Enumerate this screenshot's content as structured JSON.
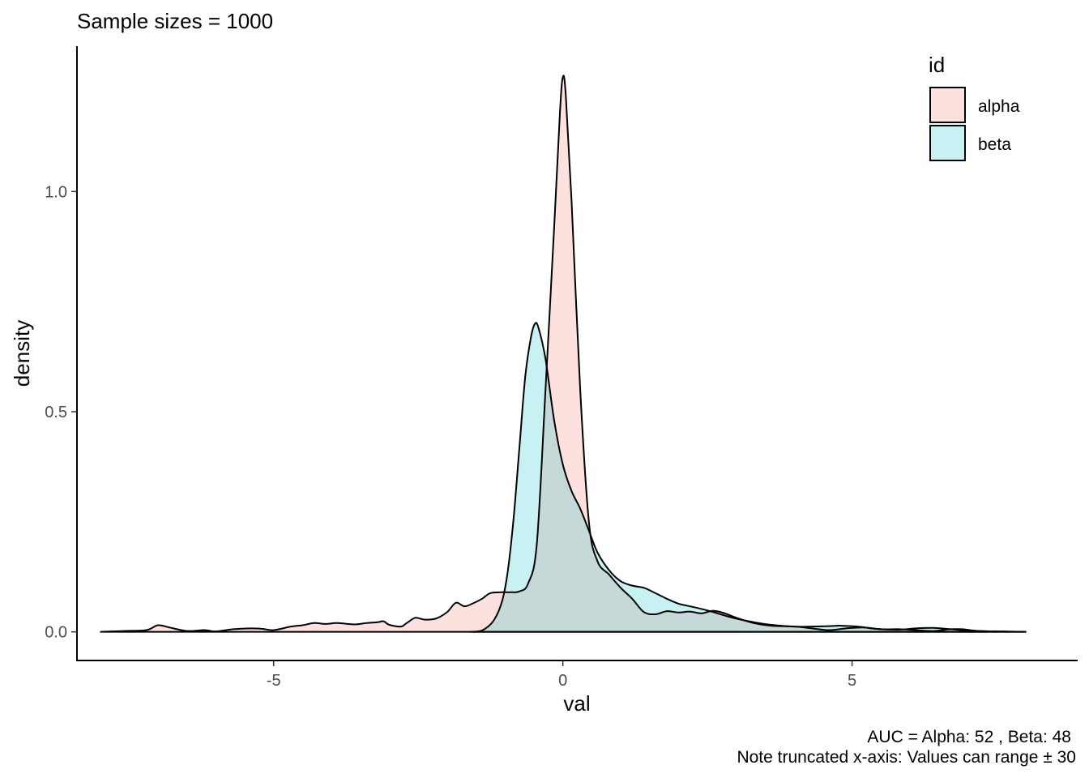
{
  "chart_data": {
    "type": "area",
    "title": "Sample sizes =  1000",
    "xlabel": "val",
    "ylabel": "density",
    "xlim": [
      -8.4,
      8.9
    ],
    "ylim": [
      -0.065,
      1.33
    ],
    "x_ticks": [
      -5,
      0,
      5
    ],
    "x_tick_labels": [
      "-5",
      "0",
      "5"
    ],
    "y_ticks": [
      0,
      0.5,
      1
    ],
    "y_tick_labels": [
      "0.0",
      "0.5",
      "1.0"
    ],
    "grid": false,
    "legend": {
      "title": "id",
      "position": "top-right",
      "entries": [
        {
          "label": "alpha",
          "color": "#f8766d"
        },
        {
          "label": "beta",
          "color": "#00bfc4"
        }
      ]
    },
    "caption_lines": [
      "AUC = Alpha: 52 , Beta: 48",
      "Note truncated x-axis: Values can range ± 30"
    ],
    "fill_opacity": 0.22,
    "series": [
      {
        "name": "alpha",
        "color": "#f8766d",
        "points": [
          [
            -8.0,
            0.0
          ],
          [
            -7.6,
            0.002
          ],
          [
            -7.2,
            0.004
          ],
          [
            -7.0,
            0.015
          ],
          [
            -6.8,
            0.01
          ],
          [
            -6.5,
            0.002
          ],
          [
            -6.2,
            0.004
          ],
          [
            -6.0,
            0.001
          ],
          [
            -5.7,
            0.006
          ],
          [
            -5.4,
            0.008
          ],
          [
            -5.2,
            0.007
          ],
          [
            -5.0,
            0.004
          ],
          [
            -4.7,
            0.012
          ],
          [
            -4.5,
            0.015
          ],
          [
            -4.3,
            0.02
          ],
          [
            -4.1,
            0.018
          ],
          [
            -3.9,
            0.02
          ],
          [
            -3.6,
            0.017
          ],
          [
            -3.4,
            0.02
          ],
          [
            -3.2,
            0.022
          ],
          [
            -3.1,
            0.024
          ],
          [
            -3.0,
            0.016
          ],
          [
            -2.8,
            0.012
          ],
          [
            -2.7,
            0.02
          ],
          [
            -2.55,
            0.032
          ],
          [
            -2.4,
            0.028
          ],
          [
            -2.2,
            0.03
          ],
          [
            -2.0,
            0.045
          ],
          [
            -1.85,
            0.066
          ],
          [
            -1.7,
            0.058
          ],
          [
            -1.55,
            0.065
          ],
          [
            -1.4,
            0.075
          ],
          [
            -1.25,
            0.088
          ],
          [
            -1.05,
            0.09
          ],
          [
            -0.9,
            0.09
          ],
          [
            -0.75,
            0.092
          ],
          [
            -0.6,
            0.11
          ],
          [
            -0.45,
            0.2
          ],
          [
            -0.3,
            0.55
          ],
          [
            -0.15,
            0.92
          ],
          [
            -0.05,
            1.18
          ],
          [
            0.0,
            1.26
          ],
          [
            0.05,
            1.22
          ],
          [
            0.15,
            0.98
          ],
          [
            0.3,
            0.55
          ],
          [
            0.45,
            0.25
          ],
          [
            0.6,
            0.16
          ],
          [
            0.8,
            0.13
          ],
          [
            1.0,
            0.1
          ],
          [
            1.2,
            0.075
          ],
          [
            1.4,
            0.045
          ],
          [
            1.6,
            0.04
          ],
          [
            1.8,
            0.047
          ],
          [
            2.0,
            0.044
          ],
          [
            2.2,
            0.046
          ],
          [
            2.4,
            0.042
          ],
          [
            2.6,
            0.048
          ],
          [
            2.8,
            0.042
          ],
          [
            3.0,
            0.032
          ],
          [
            3.3,
            0.02
          ],
          [
            3.6,
            0.014
          ],
          [
            4.0,
            0.012
          ],
          [
            4.3,
            0.008
          ],
          [
            4.6,
            0.004
          ],
          [
            4.9,
            0.008
          ],
          [
            5.2,
            0.01
          ],
          [
            5.5,
            0.006
          ],
          [
            5.8,
            0.006
          ],
          [
            6.1,
            0.004
          ],
          [
            6.4,
            0.002
          ],
          [
            6.7,
            0.006
          ],
          [
            6.9,
            0.006
          ],
          [
            7.2,
            0.002
          ],
          [
            7.6,
            0.001
          ],
          [
            8.0,
            0.0
          ]
        ]
      },
      {
        "name": "beta",
        "color": "#00bfc4",
        "points": [
          [
            -1.6,
            0.0
          ],
          [
            -1.4,
            0.003
          ],
          [
            -1.2,
            0.025
          ],
          [
            -1.05,
            0.07
          ],
          [
            -0.95,
            0.14
          ],
          [
            -0.85,
            0.26
          ],
          [
            -0.75,
            0.42
          ],
          [
            -0.65,
            0.58
          ],
          [
            -0.55,
            0.67
          ],
          [
            -0.48,
            0.7
          ],
          [
            -0.42,
            0.69
          ],
          [
            -0.3,
            0.62
          ],
          [
            -0.15,
            0.48
          ],
          [
            0.0,
            0.38
          ],
          [
            0.15,
            0.32
          ],
          [
            0.3,
            0.28
          ],
          [
            0.45,
            0.23
          ],
          [
            0.6,
            0.18
          ],
          [
            0.8,
            0.14
          ],
          [
            1.0,
            0.115
          ],
          [
            1.2,
            0.105
          ],
          [
            1.4,
            0.1
          ],
          [
            1.6,
            0.088
          ],
          [
            1.8,
            0.075
          ],
          [
            2.0,
            0.064
          ],
          [
            2.2,
            0.058
          ],
          [
            2.4,
            0.052
          ],
          [
            2.6,
            0.045
          ],
          [
            2.8,
            0.037
          ],
          [
            3.0,
            0.03
          ],
          [
            3.3,
            0.022
          ],
          [
            3.6,
            0.016
          ],
          [
            4.0,
            0.012
          ],
          [
            4.3,
            0.012
          ],
          [
            4.6,
            0.013
          ],
          [
            4.8,
            0.014
          ],
          [
            5.1,
            0.012
          ],
          [
            5.4,
            0.007
          ],
          [
            5.8,
            0.005
          ],
          [
            6.1,
            0.008
          ],
          [
            6.4,
            0.009
          ],
          [
            6.7,
            0.006
          ],
          [
            7.0,
            0.003
          ],
          [
            7.4,
            0.001
          ],
          [
            8.0,
            0.0
          ]
        ]
      }
    ]
  }
}
